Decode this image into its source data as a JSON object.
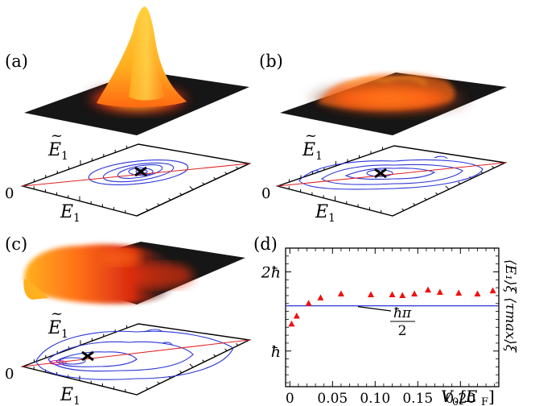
{
  "panels": {
    "a": {
      "label": "(a)"
    },
    "b": {
      "label": "(b)"
    },
    "c": {
      "label": "(c)"
    },
    "d": {
      "label": "(d)"
    }
  },
  "axes3d": {
    "x_label": "E",
    "x_sub": "1",
    "y_label": "E",
    "y_sub": "1",
    "y_accent": "~",
    "origin": "0"
  },
  "chart_data": {
    "type": "scatter",
    "xlabel_main": "V",
    "xlabel_sub": "0",
    "xlabel_unit": "[E",
    "xlabel_unit_sub": "F",
    "xlabel_close": "]",
    "ylabel": "⟨E₁⟩ξ ⟨τmax⟩ξ",
    "x_ticks": [
      "0",
      "0.05",
      "0.10",
      "0.15",
      "0.20"
    ],
    "y_ticks": [
      "ħ",
      "2ħ"
    ],
    "xlim": [
      -0.005,
      0.245
    ],
    "ylim": [
      0.55,
      2.3
    ],
    "reference_value": 1.571,
    "reference_fraction": {
      "num": "ħπ",
      "den": "2"
    },
    "series": [
      {
        "x": [
          0.002,
          0.008,
          0.022,
          0.036,
          0.06,
          0.095,
          0.12,
          0.132,
          0.146,
          0.162,
          0.176,
          0.198,
          0.22,
          0.238
        ],
        "y": [
          1.34,
          1.44,
          1.6,
          1.67,
          1.72,
          1.71,
          1.71,
          1.7,
          1.72,
          1.77,
          1.74,
          1.73,
          1.72,
          1.76
        ]
      }
    ]
  },
  "colors": {
    "contour": "#2a35d6",
    "line": "#e02020",
    "marker": "#ee1111",
    "surface_dark": "#1a1a1a",
    "surface_glow": "#ff5a10",
    "peak": "#ffc020"
  }
}
